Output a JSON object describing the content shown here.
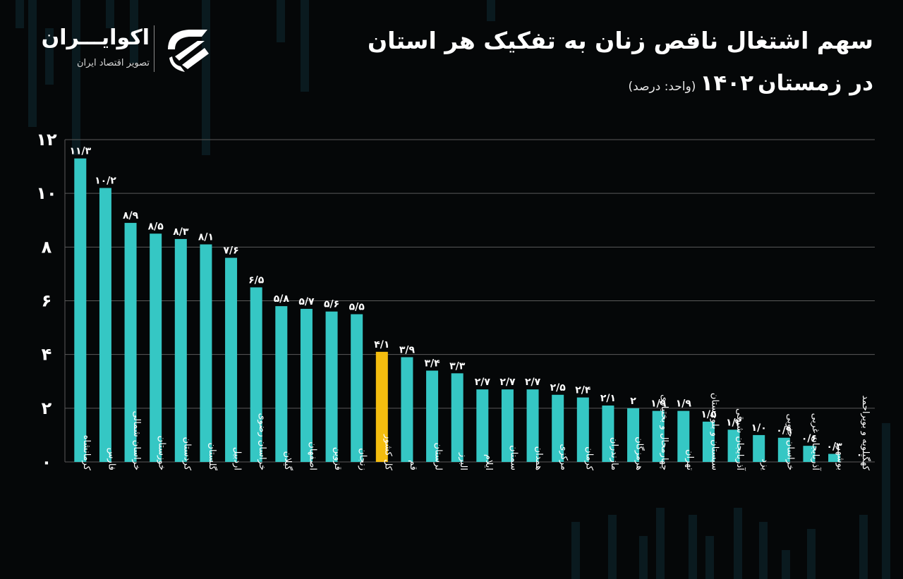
{
  "title": {
    "line1": "سهم اشتغال ناقص زنان به تفکیک هر استان",
    "line2_prefix": "در زمستان",
    "line2_year": "۱۴۰۲",
    "line2_unit": "(واحد: درصد)"
  },
  "brand": {
    "name": "اکوایـــران",
    "tagline": "تصویر اقتصاد ایران",
    "logo_icon": "ecoiran-logo-icon"
  },
  "colors": {
    "background": "#050708",
    "bar": "#35c7c4",
    "highlight_bar": "#f4bd0f",
    "grid": "#5a5a5a",
    "text": "#ffffff"
  },
  "chart_data": {
    "type": "bar",
    "ylim": [
      0,
      12
    ],
    "yticks": [
      0,
      2,
      4,
      6,
      8,
      10,
      12
    ],
    "ytick_labels": [
      "۰",
      "۲",
      "۴",
      "۶",
      "۸",
      "۱۰",
      "۱۲"
    ],
    "grid": true,
    "highlight_category": "کل کشور",
    "categories": [
      "کرمانشاه",
      "فارس",
      "خراسان شمالی",
      "خوزستان",
      "کردستان",
      "گلستان",
      "اردبیل",
      "خراسان رضوی",
      "گیلان",
      "اصفهان",
      "قزوین",
      "زنجان",
      "کل کشور",
      "قم",
      "لرستان",
      "البرز",
      "ایلام",
      "سمنان",
      "همدان",
      "مرکزی",
      "کرمان",
      "مازندران",
      "هرمزگان",
      "چهارمحال و بختیاری",
      "تهران",
      "سیستان و بلوچستان",
      "آذربایجان شرقی",
      "یزد",
      "خراسان جنوبی",
      "آذربایجان غربی",
      "بوشهر",
      "کهگیلویه و بویراحمد"
    ],
    "values": [
      11.3,
      10.2,
      8.9,
      8.5,
      8.3,
      8.1,
      7.6,
      6.5,
      5.8,
      5.7,
      5.6,
      5.5,
      4.1,
      3.9,
      3.4,
      3.3,
      2.7,
      2.7,
      2.7,
      2.5,
      2.4,
      2.1,
      2.0,
      1.9,
      1.9,
      1.5,
      1.2,
      1.0,
      0.9,
      0.6,
      0.3,
      0
    ],
    "value_labels": [
      "۱۱/۳",
      "۱۰/۲",
      "۸/۹",
      "۸/۵",
      "۸/۳",
      "۸/۱",
      "۷/۶",
      "۶/۵",
      "۵/۸",
      "۵/۷",
      "۵/۶",
      "۵/۵",
      "۴/۱",
      "۳/۹",
      "۳/۴",
      "۳/۳",
      "۲/۷",
      "۲/۷",
      "۲/۷",
      "۲/۵",
      "۲/۴",
      "۲/۱",
      "۲",
      "۱/۹",
      "۱/۹",
      "۱/۵",
      "۱/۲",
      "۱/۰",
      "۰/۹",
      "۰/۶",
      "۰/۳",
      "۰"
    ]
  }
}
